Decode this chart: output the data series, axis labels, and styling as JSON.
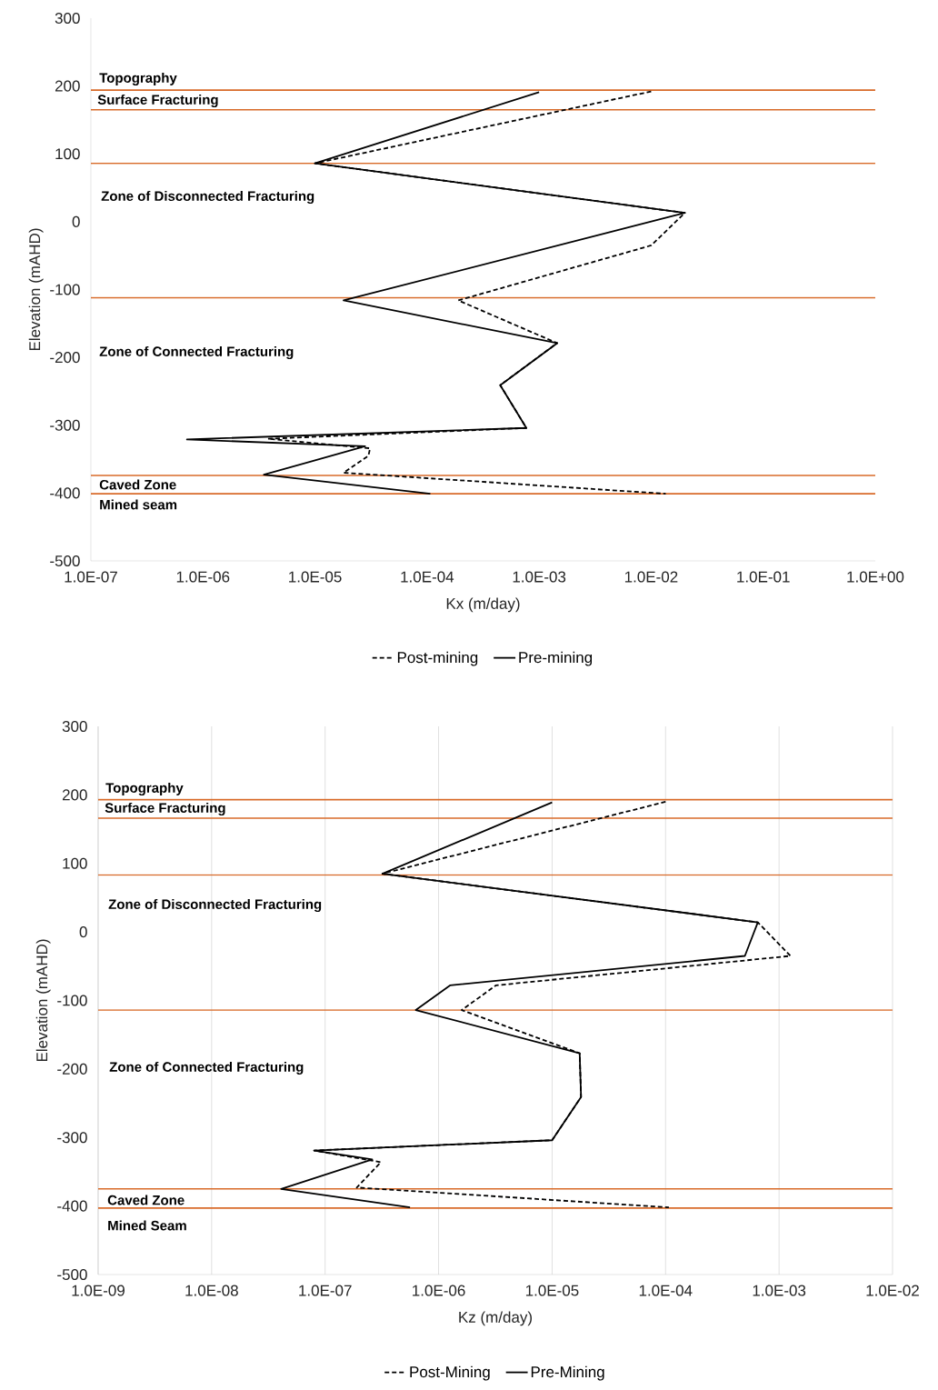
{
  "chart_data": [
    {
      "type": "line",
      "xlabel": "Kx (m/day)",
      "ylabel": "Elevation (mAHD)",
      "log": "x",
      "grid": false,
      "legend": "bottom",
      "marker": "none",
      "xlim": [
        1e-07,
        1
      ],
      "ylim": [
        -500,
        300
      ],
      "xticks": [
        {
          "value": 1e-07,
          "label": "1.0E-07"
        },
        {
          "value": 1e-06,
          "label": "1.0E-06"
        },
        {
          "value": 1e-05,
          "label": "1.0E-05"
        },
        {
          "value": 0.0001,
          "label": "1.0E-04"
        },
        {
          "value": 0.001,
          "label": "1.0E-03"
        },
        {
          "value": 0.01,
          "label": "1.0E-02"
        },
        {
          "value": 0.1,
          "label": "1.0E-01"
        },
        {
          "value": 1,
          "label": "1.0E+00"
        }
      ],
      "yticks": [
        300,
        200,
        100,
        0,
        -100,
        -200,
        -300,
        -400,
        -500
      ],
      "series": [
        {
          "name": "Post-mining",
          "color": "#000000",
          "line_style": "dashed",
          "x": [
            0.01,
            1e-05,
            0.02,
            0.01,
            0.00019,
            0.00145,
            0.00045,
            0.00077,
            3.8e-06,
            3.1e-05,
            3e-05,
            1.8e-05,
            0.0135
          ],
          "values": [
            192,
            86,
            13,
            -35,
            -116,
            -179,
            -241,
            -304,
            -320,
            -334,
            -345,
            -370,
            -401
          ]
        },
        {
          "name": "Pre-mining",
          "color": "#000000",
          "line_style": "solid",
          "x": [
            0.001,
            1e-05,
            0.02,
            1.8e-05,
            0.00145,
            0.00045,
            0.00077,
            7.2e-07,
            2.8e-05,
            3.5e-06,
            0.000107
          ],
          "values": [
            191,
            86,
            13,
            -116,
            -179,
            -241,
            -304,
            -321,
            -331,
            -373,
            -401
          ]
        }
      ],
      "ref_lines": [
        {
          "axis": "y",
          "value": 194,
          "color": "#d86a28"
        },
        {
          "axis": "y",
          "value": 165,
          "color": "#d86a28"
        },
        {
          "axis": "y",
          "value": 86,
          "color": "#d86a28"
        },
        {
          "axis": "y",
          "value": -112,
          "color": "#d86a28"
        },
        {
          "axis": "y",
          "value": -374,
          "color": "#d86a28"
        },
        {
          "axis": "y",
          "value": -401,
          "color": "#d86a28"
        }
      ],
      "annotations": [
        "Topography",
        "Surface Fracturing",
        "Zone of Disconnected Fracturing",
        "Zone of Connected Fracturing",
        "Caved Zone",
        "Mined seam"
      ]
    },
    {
      "type": "line",
      "xlabel": "Kz (m/day)",
      "ylabel": "Elevation (mAHD)",
      "log": "x",
      "grid": "x",
      "legend": "bottom",
      "marker": "none",
      "xlim": [
        1e-09,
        0.01
      ],
      "ylim": [
        -500,
        300
      ],
      "xticks": [
        {
          "value": 1e-09,
          "label": "1.0E-09"
        },
        {
          "value": 1e-08,
          "label": "1.0E-08"
        },
        {
          "value": 1e-07,
          "label": "1.0E-07"
        },
        {
          "value": 1e-06,
          "label": "1.0E-06"
        },
        {
          "value": 1e-05,
          "label": "1.0E-05"
        },
        {
          "value": 0.0001,
          "label": "1.0E-04"
        },
        {
          "value": 0.001,
          "label": "1.0E-03"
        },
        {
          "value": 0.01,
          "label": "1.0E-02"
        }
      ],
      "yticks": [
        300,
        200,
        100,
        0,
        -100,
        -200,
        -300,
        -400,
        -500
      ],
      "series": [
        {
          "name": "Post-Mining",
          "color": "#000000",
          "line_style": "dashed",
          "x": [
            0.0001,
            3.2e-07,
            0.00065,
            0.00126,
            3.2e-06,
            1.6e-06,
            1.75e-05,
            1.8e-05,
            1e-05,
            8e-08,
            3.1e-07,
            1.9e-07,
            0.000107
          ],
          "values": [
            190,
            85,
            14,
            -35,
            -78,
            -114,
            -177,
            -241,
            -304,
            -319,
            -336,
            -373,
            -402
          ]
        },
        {
          "name": "Pre-Mining",
          "color": "#000000",
          "line_style": "solid",
          "x": [
            1e-05,
            3.2e-07,
            0.00065,
            0.0005,
            1.26e-06,
            6.3e-07,
            1.75e-05,
            1.8e-05,
            1e-05,
            8e-08,
            2.6e-07,
            4.1e-08,
            5.6e-07
          ],
          "values": [
            189,
            85,
            14,
            -35,
            -78,
            -114,
            -177,
            -241,
            -304,
            -319,
            -332,
            -375,
            -402
          ]
        }
      ],
      "ref_lines": [
        {
          "axis": "y",
          "value": 193,
          "color": "#d86a28"
        },
        {
          "axis": "y",
          "value": 166,
          "color": "#d86a28"
        },
        {
          "axis": "y",
          "value": 83,
          "color": "#d86a28"
        },
        {
          "axis": "y",
          "value": -114,
          "color": "#d86a28"
        },
        {
          "axis": "y",
          "value": -375,
          "color": "#d86a28"
        },
        {
          "axis": "y",
          "value": -403,
          "color": "#d86a28"
        }
      ],
      "annotations": [
        "Topography",
        "Surface Fracturing",
        "Zone of Disconnected Fracturing",
        "Zone of Connected Fracturing",
        "Caved Zone",
        "Mined Seam"
      ]
    }
  ]
}
